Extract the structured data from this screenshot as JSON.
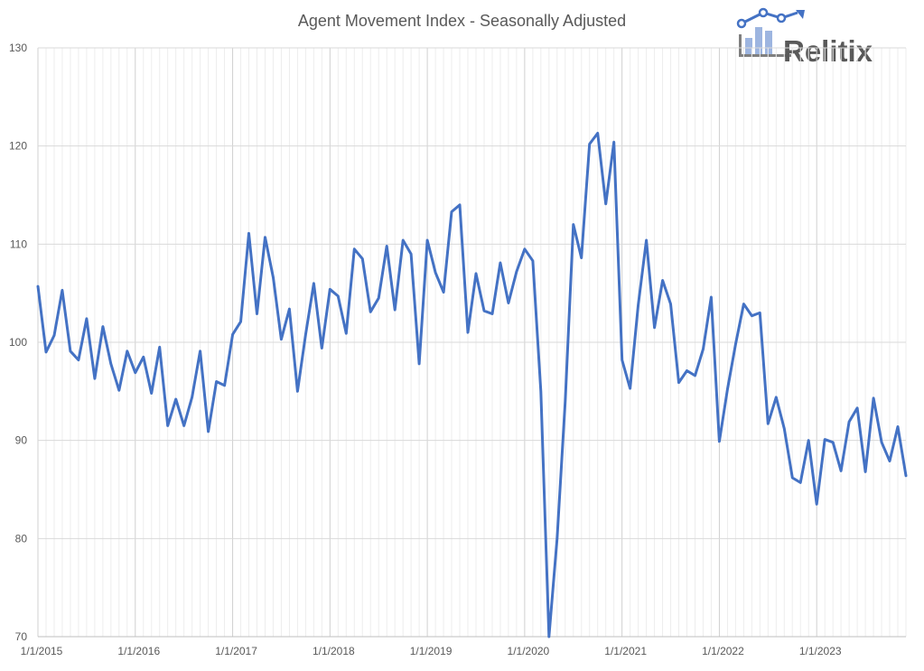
{
  "logo": {
    "text": "Relitix",
    "accent_color": "#4472C4",
    "text_color": "#595959"
  },
  "chart_data": {
    "type": "line",
    "title": "Agent Movement Index - Seasonally Adjusted",
    "xlabel": "",
    "ylabel": "",
    "ylim": [
      70,
      130
    ],
    "yticks": [
      70,
      80,
      90,
      100,
      110,
      120,
      130
    ],
    "x_tick_labels": [
      "1/1/2015",
      "1/1/2016",
      "1/1/2017",
      "1/1/2018",
      "1/1/2019",
      "1/1/2020",
      "1/1/2021",
      "1/1/2022",
      "1/1/2023"
    ],
    "grid": {
      "vertical_monthly": true,
      "horizontal_major": true
    },
    "line_color": "#4472C4",
    "series": [
      {
        "start": "2015-01",
        "frequency": "monthly",
        "values": [
          105.7,
          99.0,
          100.7,
          105.3,
          99.1,
          98.2,
          102.4,
          96.3,
          101.6,
          97.8,
          95.1,
          99.1,
          96.9,
          98.5,
          94.8,
          99.5,
          91.5,
          94.2,
          91.5,
          94.4,
          99.1,
          90.9,
          96.0,
          95.6,
          100.8,
          102.1,
          111.1,
          102.9,
          110.7,
          106.6,
          100.3,
          103.4,
          95.0,
          100.8,
          106.0,
          99.4,
          105.4,
          104.7,
          100.9,
          109.5,
          108.5,
          103.1,
          104.5,
          109.8,
          103.3,
          110.4,
          109.0,
          97.8,
          110.4,
          107.1,
          105.1,
          113.3,
          114.0,
          101.0,
          107.0,
          103.2,
          102.9,
          108.1,
          104.0,
          107.2,
          109.5,
          108.3,
          95.0,
          70.0,
          80.0,
          94.0,
          112.0,
          108.6,
          120.2,
          121.3,
          114.1,
          120.4,
          98.2,
          95.3,
          103.8,
          110.4,
          101.5,
          106.3,
          103.9,
          95.9,
          97.1,
          96.6,
          99.3,
          104.6,
          89.9,
          95.2,
          99.8,
          103.9,
          102.7,
          103.0,
          91.7,
          94.4,
          91.2,
          86.2,
          85.7,
          90.0,
          83.5,
          90.1,
          89.8,
          86.9,
          91.9,
          93.3,
          86.8,
          94.3,
          89.8,
          87.9,
          91.4,
          86.4
        ]
      }
    ]
  }
}
